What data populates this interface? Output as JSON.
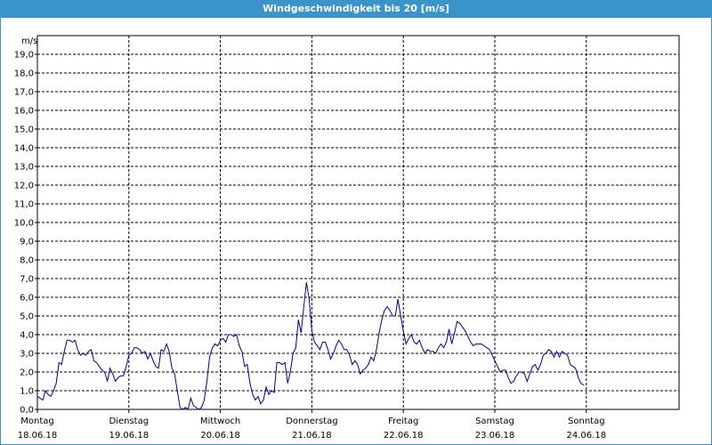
{
  "window": {
    "title": "Windgeschwindigkeit bis 20 [m/s]"
  },
  "colors": {
    "titlebar": "#3a93c9",
    "series": "#00008b",
    "grid": "#000000"
  },
  "chart_data": {
    "type": "line",
    "title": "Windgeschwindigkeit bis 20 [m/s]",
    "ylabel": "m/s",
    "ylim": [
      0,
      20
    ],
    "yticks": [
      "0,0",
      "1,0",
      "2,0",
      "3,0",
      "4,0",
      "5,0",
      "6,0",
      "7,0",
      "8,0",
      "9,0",
      "10,0",
      "11,0",
      "12,0",
      "13,0",
      "14,0",
      "15,0",
      "16,0",
      "17,0",
      "18,0",
      "19,0"
    ],
    "xlim": [
      0,
      7.0
    ],
    "x_unit": "days from 18.06.18 00:00",
    "x_ticks": [
      {
        "day": "Montag",
        "date": "18.06.18"
      },
      {
        "day": "Dienstag",
        "date": "19.06.18"
      },
      {
        "day": "Mittwoch",
        "date": "20.06.18"
      },
      {
        "day": "Donnerstag",
        "date": "21.06.18"
      },
      {
        "day": "Freitag",
        "date": "22.06.18"
      },
      {
        "day": "Samstag",
        "date": "23.06.18"
      },
      {
        "day": "Sonntag",
        "date": "24.06.18"
      }
    ],
    "grid": true,
    "series": [
      {
        "name": "",
        "points": [
          [
            0.0,
            0.7
          ],
          [
            0.029,
            0.6
          ],
          [
            0.059,
            0.5
          ],
          [
            0.088,
            1.0
          ],
          [
            0.118,
            0.8
          ],
          [
            0.147,
            0.7
          ],
          [
            0.176,
            1.0
          ],
          [
            0.206,
            1.4
          ],
          [
            0.235,
            2.5
          ],
          [
            0.265,
            2.4
          ],
          [
            0.294,
            3.1
          ],
          [
            0.324,
            3.7
          ],
          [
            0.353,
            3.7
          ],
          [
            0.382,
            3.6
          ],
          [
            0.412,
            3.7
          ],
          [
            0.441,
            3.2
          ],
          [
            0.471,
            2.9
          ],
          [
            0.5,
            3.0
          ],
          [
            0.529,
            2.9
          ],
          [
            0.559,
            3.1
          ],
          [
            0.588,
            3.2
          ],
          [
            0.618,
            2.6
          ],
          [
            0.647,
            2.5
          ],
          [
            0.676,
            2.3
          ],
          [
            0.706,
            2.1
          ],
          [
            0.735,
            2.0
          ],
          [
            0.765,
            1.5
          ],
          [
            0.794,
            2.2
          ],
          [
            0.824,
            1.9
          ],
          [
            0.853,
            1.5
          ],
          [
            0.882,
            1.7
          ],
          [
            0.912,
            1.8
          ],
          [
            0.941,
            1.8
          ],
          [
            0.971,
            2.3
          ],
          [
            1.0,
            2.9
          ],
          [
            1.029,
            3.0
          ],
          [
            1.059,
            3.3
          ],
          [
            1.088,
            3.3
          ],
          [
            1.118,
            3.2
          ],
          [
            1.147,
            3.0
          ],
          [
            1.176,
            3.1
          ],
          [
            1.206,
            2.7
          ],
          [
            1.235,
            3.0
          ],
          [
            1.265,
            2.6
          ],
          [
            1.294,
            2.3
          ],
          [
            1.324,
            2.2
          ],
          [
            1.353,
            3.2
          ],
          [
            1.382,
            3.1
          ],
          [
            1.412,
            3.5
          ],
          [
            1.441,
            3.1
          ],
          [
            1.471,
            2.2
          ],
          [
            1.5,
            1.9
          ],
          [
            1.529,
            1.0
          ],
          [
            1.559,
            0.1
          ],
          [
            1.588,
            0.0
          ],
          [
            1.618,
            0.1
          ],
          [
            1.647,
            0.0
          ],
          [
            1.676,
            0.6
          ],
          [
            1.706,
            0.2
          ],
          [
            1.735,
            0.1
          ],
          [
            1.765,
            0.0
          ],
          [
            1.794,
            0.1
          ],
          [
            1.824,
            0.5
          ],
          [
            1.853,
            1.5
          ],
          [
            1.882,
            2.8
          ],
          [
            1.912,
            3.3
          ],
          [
            1.941,
            3.5
          ],
          [
            1.971,
            3.4
          ],
          [
            2.0,
            3.7
          ],
          [
            2.029,
            3.8
          ],
          [
            2.059,
            3.6
          ],
          [
            2.088,
            4.0
          ],
          [
            2.118,
            4.0
          ],
          [
            2.147,
            3.9
          ],
          [
            2.176,
            4.0
          ],
          [
            2.206,
            3.4
          ],
          [
            2.235,
            3.1
          ],
          [
            2.265,
            2.3
          ],
          [
            2.294,
            2.4
          ],
          [
            2.324,
            1.4
          ],
          [
            2.353,
            0.8
          ],
          [
            2.382,
            0.5
          ],
          [
            2.412,
            0.7
          ],
          [
            2.441,
            0.3
          ],
          [
            2.471,
            0.5
          ],
          [
            2.5,
            1.2
          ],
          [
            2.529,
            0.8
          ],
          [
            2.559,
            1.0
          ],
          [
            2.588,
            0.9
          ],
          [
            2.618,
            2.5
          ],
          [
            2.647,
            2.5
          ],
          [
            2.676,
            2.4
          ],
          [
            2.706,
            2.5
          ],
          [
            2.735,
            1.4
          ],
          [
            2.765,
            2.0
          ],
          [
            2.794,
            3.0
          ],
          [
            2.824,
            3.3
          ],
          [
            2.853,
            4.8
          ],
          [
            2.882,
            4.1
          ],
          [
            2.912,
            5.5
          ],
          [
            2.941,
            6.8
          ],
          [
            2.971,
            5.9
          ],
          [
            3.0,
            4.2
          ],
          [
            3.029,
            3.6
          ],
          [
            3.059,
            3.4
          ],
          [
            3.088,
            3.2
          ],
          [
            3.118,
            3.6
          ],
          [
            3.147,
            3.6
          ],
          [
            3.176,
            3.2
          ],
          [
            3.206,
            2.7
          ],
          [
            3.235,
            3.0
          ],
          [
            3.265,
            3.4
          ],
          [
            3.294,
            3.7
          ],
          [
            3.324,
            3.5
          ],
          [
            3.353,
            3.2
          ],
          [
            3.382,
            3.2
          ],
          [
            3.412,
            2.9
          ],
          [
            3.441,
            2.4
          ],
          [
            3.471,
            2.6
          ],
          [
            3.5,
            2.4
          ],
          [
            3.529,
            1.9
          ],
          [
            3.559,
            2.1
          ],
          [
            3.588,
            2.2
          ],
          [
            3.618,
            2.4
          ],
          [
            3.647,
            2.8
          ],
          [
            3.676,
            2.6
          ],
          [
            3.706,
            3.2
          ],
          [
            3.735,
            4.1
          ],
          [
            3.765,
            4.8
          ],
          [
            3.794,
            5.3
          ],
          [
            3.824,
            5.5
          ],
          [
            3.853,
            5.3
          ],
          [
            3.882,
            5.0
          ],
          [
            3.912,
            5.0
          ],
          [
            3.941,
            5.9
          ],
          [
            3.971,
            5.0
          ],
          [
            4.0,
            4.2
          ],
          [
            4.029,
            3.5
          ],
          [
            4.059,
            3.8
          ],
          [
            4.088,
            4.0
          ],
          [
            4.118,
            3.6
          ],
          [
            4.147,
            3.5
          ],
          [
            4.176,
            3.7
          ],
          [
            4.206,
            3.3
          ],
          [
            4.235,
            3.0
          ],
          [
            4.265,
            3.2
          ],
          [
            4.294,
            3.1
          ],
          [
            4.324,
            3.1
          ],
          [
            4.353,
            3.0
          ],
          [
            4.382,
            3.3
          ],
          [
            4.412,
            3.5
          ],
          [
            4.441,
            3.3
          ],
          [
            4.471,
            3.6
          ],
          [
            4.5,
            4.3
          ],
          [
            4.529,
            3.5
          ],
          [
            4.559,
            4.1
          ],
          [
            4.588,
            4.7
          ],
          [
            4.618,
            4.6
          ],
          [
            4.647,
            4.4
          ],
          [
            4.676,
            4.2
          ],
          [
            4.706,
            3.9
          ],
          [
            4.735,
            3.6
          ],
          [
            4.765,
            3.4
          ],
          [
            4.794,
            3.5
          ],
          [
            4.824,
            3.5
          ],
          [
            4.853,
            3.5
          ],
          [
            4.882,
            3.4
          ],
          [
            4.912,
            3.3
          ],
          [
            4.941,
            3.2
          ],
          [
            4.971,
            2.9
          ],
          [
            5.0,
            2.6
          ],
          [
            5.029,
            2.3
          ],
          [
            5.059,
            2.0
          ],
          [
            5.088,
            2.1
          ],
          [
            5.118,
            2.1
          ],
          [
            5.147,
            1.7
          ],
          [
            5.176,
            1.4
          ],
          [
            5.206,
            1.5
          ],
          [
            5.235,
            1.8
          ],
          [
            5.265,
            2.0
          ],
          [
            5.294,
            2.0
          ],
          [
            5.324,
            1.9
          ],
          [
            5.353,
            1.5
          ],
          [
            5.382,
            1.9
          ],
          [
            5.412,
            2.3
          ],
          [
            5.441,
            2.4
          ],
          [
            5.471,
            2.1
          ],
          [
            5.5,
            2.4
          ],
          [
            5.529,
            2.9
          ],
          [
            5.559,
            3.0
          ],
          [
            5.588,
            3.2
          ],
          [
            5.618,
            3.1
          ],
          [
            5.647,
            2.8
          ],
          [
            5.676,
            3.1
          ],
          [
            5.706,
            2.8
          ],
          [
            5.735,
            3.1
          ],
          [
            5.765,
            3.0
          ],
          [
            5.794,
            2.9
          ],
          [
            5.824,
            2.4
          ],
          [
            5.853,
            2.3
          ],
          [
            5.882,
            2.2
          ],
          [
            5.912,
            1.7
          ],
          [
            5.941,
            1.4
          ],
          [
            5.971,
            1.3
          ]
        ]
      }
    ]
  }
}
